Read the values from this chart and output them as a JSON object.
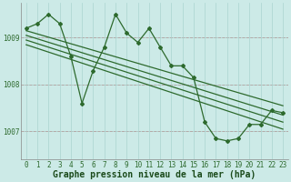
{
  "title": "Graphe pression niveau de la mer (hPa)",
  "background_color": "#cceae7",
  "plot_background_color": "#cceae7",
  "line_color": "#2d6a2d",
  "grid_color": "#aad4d0",
  "red_line_color": "#cc3333",
  "tick_color": "#2d6a2d",
  "xlabel_color": "#1a4a1a",
  "hours": [
    0,
    1,
    2,
    3,
    4,
    5,
    6,
    7,
    8,
    9,
    10,
    11,
    12,
    13,
    14,
    15,
    16,
    17,
    18,
    19,
    20,
    21,
    22,
    23
  ],
  "jagged_series": [
    1009.2,
    1009.3,
    1009.5,
    1009.3,
    1008.6,
    1007.6,
    1008.3,
    1008.8,
    1009.5,
    1009.1,
    1008.9,
    1009.2,
    1008.8,
    1008.4,
    1008.4,
    1008.15,
    1007.2,
    1006.85,
    1006.8,
    1006.85,
    1007.15,
    1007.15,
    1007.45,
    1007.4
  ],
  "trend_lines": [
    [
      [
        0,
        23
      ],
      [
        1009.15,
        1007.55
      ]
    ],
    [
      [
        0,
        23
      ],
      [
        1009.05,
        1007.35
      ]
    ],
    [
      [
        0,
        23
      ],
      [
        1008.95,
        1007.2
      ]
    ],
    [
      [
        0,
        23
      ],
      [
        1008.85,
        1007.05
      ]
    ]
  ],
  "ylim_min": 1006.4,
  "ylim_max": 1009.75,
  "yticks": [
    1007.0,
    1008.0,
    1009.0
  ],
  "ytick_labels": [
    "1007",
    "1008",
    "1009"
  ],
  "xticks": [
    0,
    1,
    2,
    3,
    4,
    5,
    6,
    7,
    8,
    9,
    10,
    11,
    12,
    13,
    14,
    15,
    16,
    17,
    18,
    19,
    20,
    21,
    22,
    23
  ],
  "title_fontsize": 7.0,
  "tick_fontsize": 5.5,
  "marker": "D",
  "marker_size": 2.0,
  "line_width": 0.9
}
